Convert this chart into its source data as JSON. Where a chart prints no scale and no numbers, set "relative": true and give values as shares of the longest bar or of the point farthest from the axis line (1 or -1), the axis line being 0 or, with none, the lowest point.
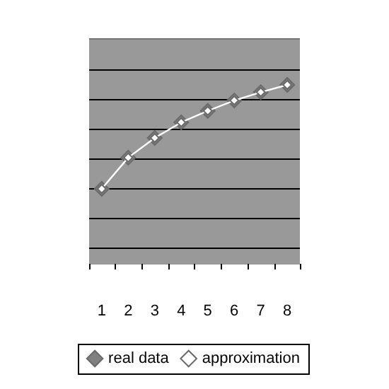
{
  "chart_data": {
    "type": "line",
    "relative": true,
    "categories": [
      "1",
      "2",
      "3",
      "4",
      "5",
      "6",
      "7",
      "8"
    ],
    "series": [
      {
        "name": "real data",
        "color": "#808080",
        "type": "scatter",
        "values": [
          0,
          0.3,
          0.49,
          0.64,
          0.75,
          0.85,
          0.93,
          1
        ]
      },
      {
        "name": "approximation",
        "color": "#ffffff",
        "values": [
          0,
          0.3,
          0.49,
          0.64,
          0.75,
          0.85,
          0.93,
          1
        ]
      }
    ],
    "marker": "diamond",
    "legend": "bottom",
    "line_style": "solid"
  }
}
